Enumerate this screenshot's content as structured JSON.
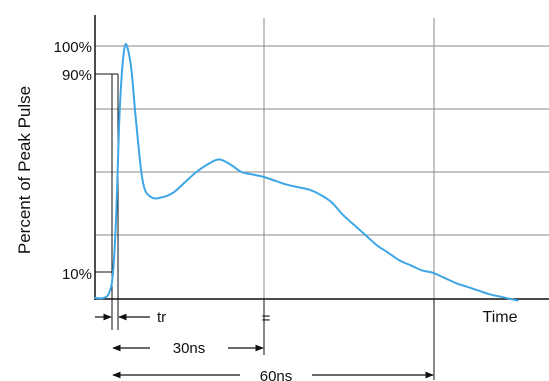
{
  "chart_data": {
    "type": "line",
    "ylabel": "Percent of Peak Pulse",
    "xlabel": "Time",
    "y_tick_labels": [
      "100%",
      "90%",
      "10%"
    ],
    "x_range_ns": [
      0,
      80
    ],
    "grid": true,
    "series": [
      {
        "color": "#3ea6e6",
        "x": [
          0,
          1.5,
          2.5,
          3.2,
          3.8,
          4.3,
          4.8,
          5.3,
          5.8,
          6.5,
          7.3,
          8.5,
          10,
          12,
          14,
          16,
          18,
          20,
          22,
          24,
          26,
          28,
          30,
          32,
          34,
          36,
          38,
          40,
          42,
          44,
          46,
          48,
          50,
          52,
          54,
          56,
          58,
          60,
          62,
          64,
          66,
          68,
          70,
          72,
          74,
          75
        ],
        "y": [
          0,
          0,
          2,
          10,
          35,
          70,
          90,
          100,
          99,
          90,
          70,
          46,
          40,
          40,
          42,
          46,
          50,
          53,
          55,
          53,
          50,
          49,
          48,
          46.5,
          45,
          44,
          43,
          41,
          38,
          33,
          29,
          25,
          21,
          18,
          15,
          13,
          11,
          10,
          8,
          6,
          4.5,
          3,
          1.5,
          0.5,
          -0.5,
          -1
        ]
      }
    ],
    "markers": [
      {
        "label": "tr"
      },
      {
        "label": "30ns"
      },
      {
        "label": "60ns"
      },
      {
        "label": "="
      }
    ]
  }
}
